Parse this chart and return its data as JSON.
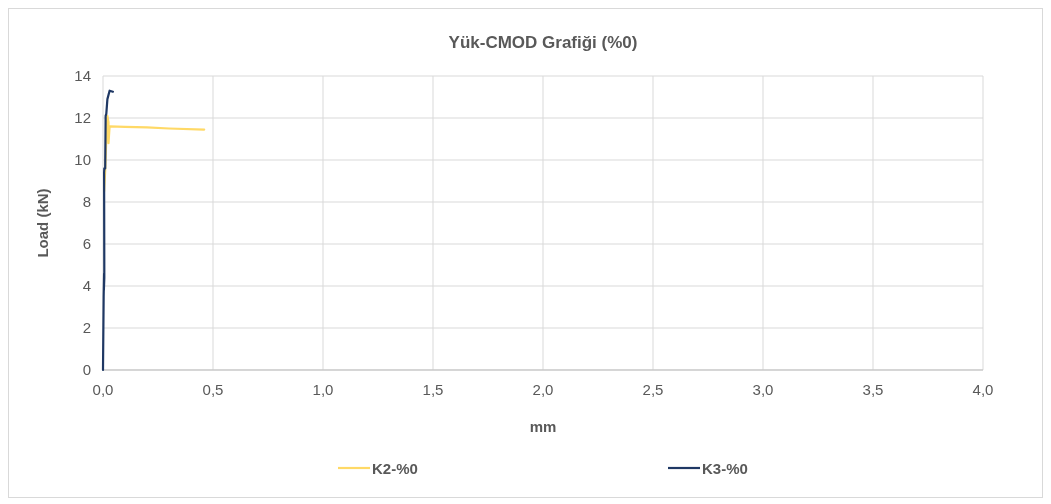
{
  "chart_data": {
    "type": "line",
    "title": "Yük-CMOD Grafiği (%0)",
    "xlabel": "mm",
    "ylabel": "Load (kN)",
    "xlim": [
      0,
      4
    ],
    "ylim": [
      0,
      14
    ],
    "xticks": [
      {
        "value": 0,
        "label": "0,0"
      },
      {
        "value": 0.5,
        "label": "0,5"
      },
      {
        "value": 1,
        "label": "1,0"
      },
      {
        "value": 1.5,
        "label": "1,5"
      },
      {
        "value": 2,
        "label": "2,0"
      },
      {
        "value": 2.5,
        "label": "2,5"
      },
      {
        "value": 3,
        "label": "3,0"
      },
      {
        "value": 3.5,
        "label": "3,5"
      },
      {
        "value": 4,
        "label": "4,0"
      }
    ],
    "yticks": [
      0,
      2,
      4,
      6,
      8,
      10,
      12,
      14
    ],
    "grid": true,
    "legend": "bottom",
    "series": [
      {
        "name": "K2-%0",
        "color": "#ffd966",
        "x": [
          0.005,
          0.01,
          0.015,
          0.02,
          0.025,
          0.025,
          0.03,
          0.1,
          0.2,
          0.3,
          0.46
        ],
        "values": [
          8.5,
          9.5,
          11,
          12.1,
          11.8,
          10.8,
          11.6,
          11.58,
          11.55,
          11.5,
          11.45
        ]
      },
      {
        "name": "K3-%0",
        "color": "#1f3864",
        "x": [
          0,
          0.003,
          0.005,
          0.004,
          0.006,
          0.005,
          0.006,
          0.01,
          0.012,
          0.015,
          0.02,
          0.03,
          0.045
        ],
        "values": [
          0,
          3.5,
          4.6,
          3.8,
          4.4,
          9.4,
          9.6,
          9.6,
          12.1,
          12.2,
          12.9,
          13.3,
          13.25
        ]
      }
    ]
  }
}
